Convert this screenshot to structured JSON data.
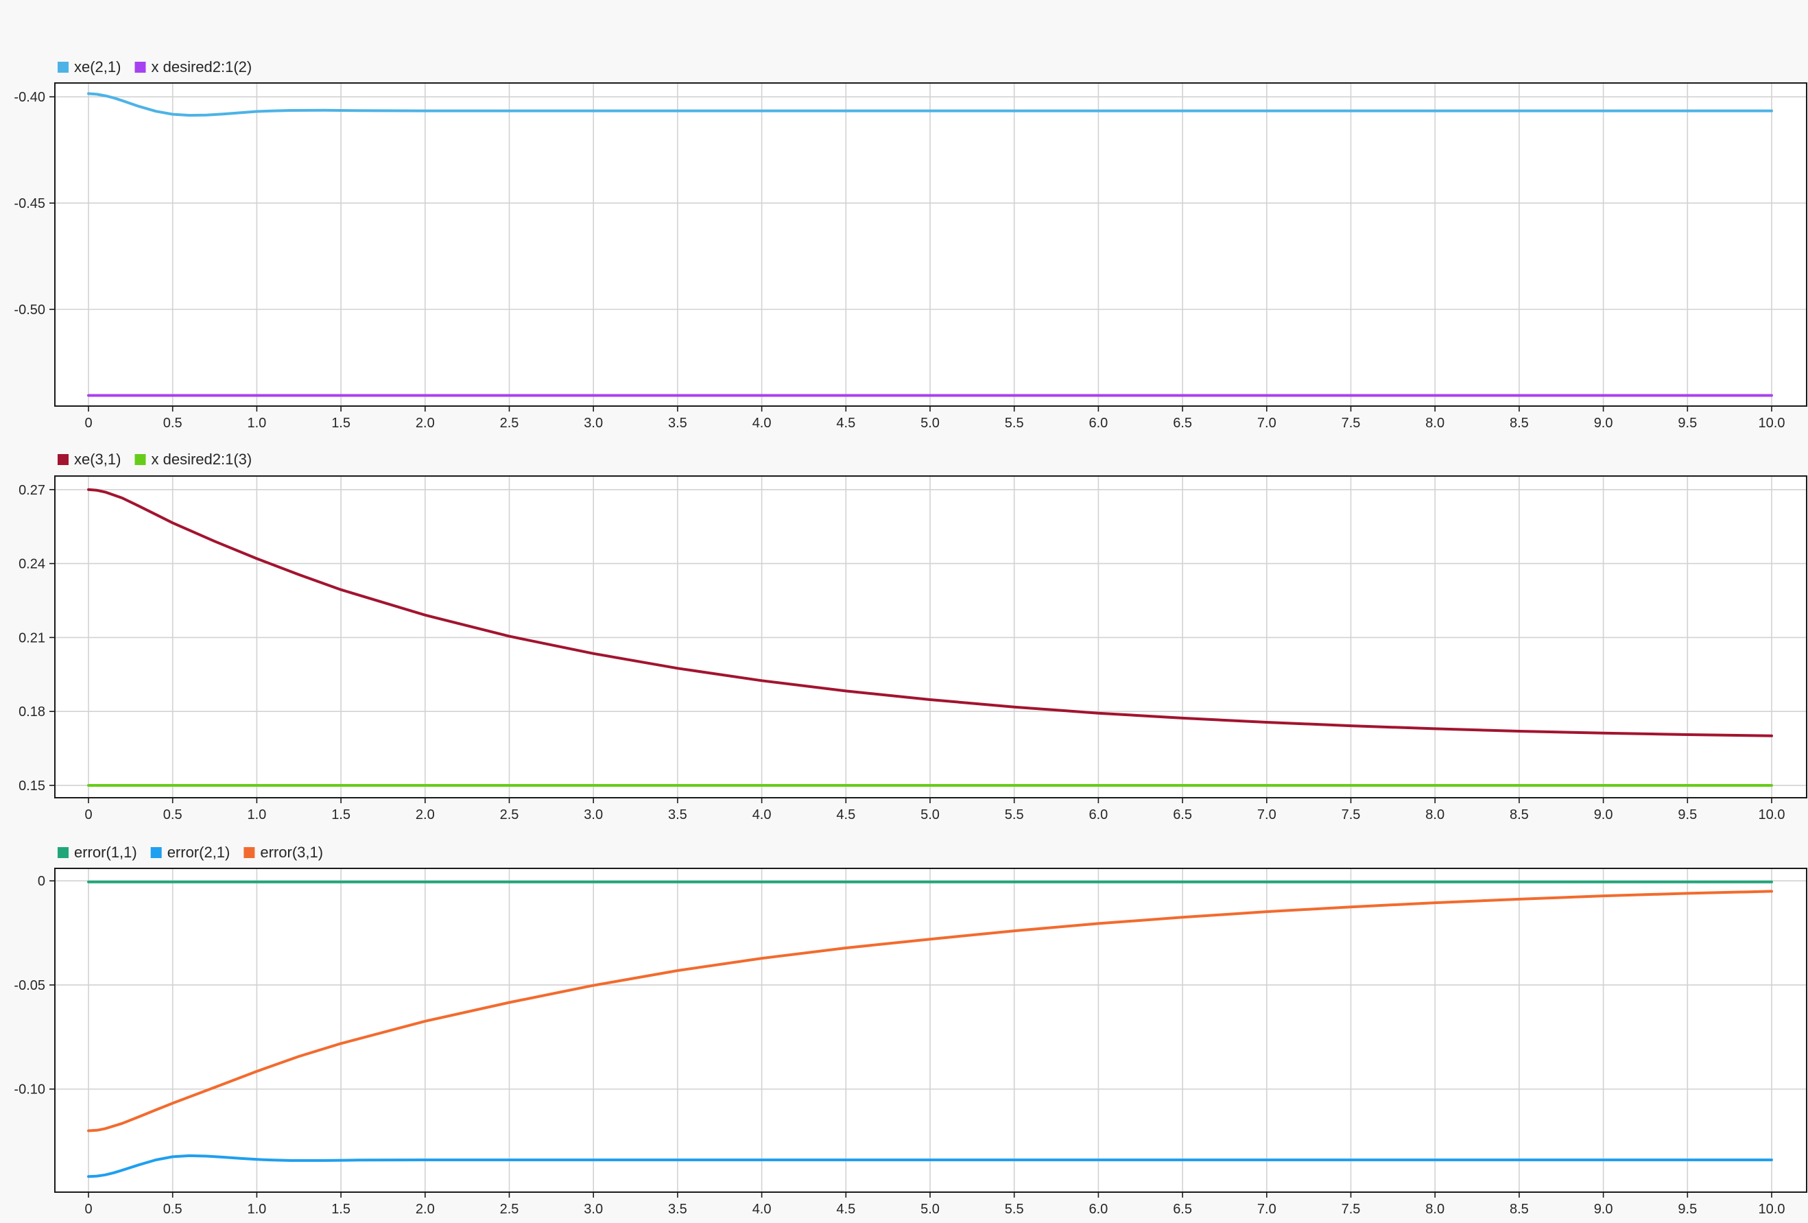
{
  "colors": {
    "background": "#f8f8f8",
    "axes_background": "#ffffff",
    "axes_border": "#1a1a1a",
    "grid": "#d2d2d2",
    "text": "#262626"
  },
  "chart_data": [
    {
      "type": "line",
      "title": "",
      "xlabel": "",
      "ylabel": "",
      "xlim": [
        0,
        10
      ],
      "ylim": [
        -0.5455,
        -0.3935
      ],
      "grid": true,
      "legend_position": "top-left",
      "x_ticks": [
        0,
        0.5,
        1.0,
        1.5,
        2.0,
        2.5,
        3.0,
        3.5,
        4.0,
        4.5,
        5.0,
        5.5,
        6.0,
        6.5,
        7.0,
        7.5,
        8.0,
        8.5,
        9.0,
        9.5,
        10.0
      ],
      "x_tick_labels": [
        "0",
        "0.5",
        "1.0",
        "1.5",
        "2.0",
        "2.5",
        "3.0",
        "3.5",
        "4.0",
        "4.5",
        "5.0",
        "5.5",
        "6.0",
        "6.5",
        "7.0",
        "7.5",
        "8.0",
        "8.5",
        "9.0",
        "9.5",
        "10.0"
      ],
      "y_ticks": [
        -0.4,
        -0.45,
        -0.5
      ],
      "y_tick_labels": [
        "-0.40",
        "-0.45",
        "-0.50"
      ],
      "series": [
        {
          "name": "xe(2,1)",
          "color": "#4db3e6",
          "x": [
            0,
            0.05,
            0.1,
            0.15,
            0.2,
            0.3,
            0.4,
            0.5,
            0.6,
            0.7,
            0.8,
            0.9,
            1.0,
            1.1,
            1.2,
            1.4,
            1.6,
            2.0,
            3.0,
            5.0,
            7.0,
            10.0
          ],
          "y": [
            -0.3985,
            -0.3988,
            -0.3995,
            -0.4005,
            -0.4018,
            -0.4045,
            -0.4068,
            -0.4082,
            -0.4087,
            -0.4086,
            -0.4081,
            -0.4075,
            -0.4069,
            -0.4066,
            -0.4064,
            -0.4063,
            -0.4065,
            -0.4066,
            -0.4066,
            -0.4066,
            -0.4066,
            -0.4066
          ]
        },
        {
          "name": "x desired2:1(2)",
          "color": "#a742f0",
          "x": [
            0,
            10
          ],
          "y": [
            -0.5405,
            -0.5405
          ]
        }
      ]
    },
    {
      "type": "line",
      "title": "",
      "xlabel": "",
      "ylabel": "",
      "xlim": [
        0,
        10
      ],
      "ylim": [
        0.145,
        0.2755
      ],
      "grid": true,
      "legend_position": "top-left",
      "x_ticks": [
        0,
        0.5,
        1.0,
        1.5,
        2.0,
        2.5,
        3.0,
        3.5,
        4.0,
        4.5,
        5.0,
        5.5,
        6.0,
        6.5,
        7.0,
        7.5,
        8.0,
        8.5,
        9.0,
        9.5,
        10.0
      ],
      "x_tick_labels": [
        "0",
        "0.5",
        "1.0",
        "1.5",
        "2.0",
        "2.5",
        "3.0",
        "3.5",
        "4.0",
        "4.5",
        "5.0",
        "5.5",
        "6.0",
        "6.5",
        "7.0",
        "7.5",
        "8.0",
        "8.5",
        "9.0",
        "9.5",
        "10.0"
      ],
      "y_ticks": [
        0.27,
        0.24,
        0.21,
        0.18,
        0.15
      ],
      "y_tick_labels": [
        "0.27",
        "0.24",
        "0.21",
        "0.18",
        "0.15"
      ],
      "series": [
        {
          "name": "xe(3,1)",
          "color": "#a2142f",
          "x": [
            0,
            0.05,
            0.1,
            0.2,
            0.3,
            0.4,
            0.5,
            0.75,
            1.0,
            1.25,
            1.5,
            2.0,
            2.5,
            3.0,
            3.5,
            4.0,
            4.5,
            5.0,
            5.5,
            6.0,
            6.5,
            7.0,
            7.5,
            8.0,
            8.5,
            9.0,
            9.5,
            10.0
          ],
          "y": [
            0.27,
            0.2697,
            0.269,
            0.2666,
            0.2633,
            0.2599,
            0.2565,
            0.249,
            0.242,
            0.2355,
            0.2294,
            0.2191,
            0.2105,
            0.2035,
            0.1975,
            0.1925,
            0.1883,
            0.1848,
            0.1818,
            0.1793,
            0.1773,
            0.1756,
            0.1742,
            0.173,
            0.172,
            0.1712,
            0.1706,
            0.1701
          ]
        },
        {
          "name": "x desired2:1(3)",
          "color": "#66cc1a",
          "x": [
            0,
            10
          ],
          "y": [
            0.15,
            0.15
          ]
        }
      ]
    },
    {
      "type": "line",
      "title": "",
      "xlabel": "",
      "ylabel": "",
      "xlim": [
        0,
        10
      ],
      "ylim": [
        -0.1495,
        0.006
      ],
      "grid": true,
      "legend_position": "top-left",
      "x_ticks": [
        0,
        0.5,
        1.0,
        1.5,
        2.0,
        2.5,
        3.0,
        3.5,
        4.0,
        4.5,
        5.0,
        5.5,
        6.0,
        6.5,
        7.0,
        7.5,
        8.0,
        8.5,
        9.0,
        9.5,
        10.0
      ],
      "x_tick_labels": [
        "0",
        "0.5",
        "1.0",
        "1.5",
        "2.0",
        "2.5",
        "3.0",
        "3.5",
        "4.0",
        "4.5",
        "5.0",
        "5.5",
        "6.0",
        "6.5",
        "7.0",
        "7.5",
        "8.0",
        "8.5",
        "9.0",
        "9.5",
        "10.0"
      ],
      "y_ticks": [
        0,
        -0.05,
        -0.1
      ],
      "y_tick_labels": [
        "0",
        "-0.05",
        "-0.10"
      ],
      "series": [
        {
          "name": "error(1,1)",
          "color": "#21a67a",
          "x": [
            0,
            10
          ],
          "y": [
            -0.0005,
            -0.0005
          ]
        },
        {
          "name": "error(2,1)",
          "color": "#1f9ff0",
          "x": [
            0,
            0.05,
            0.1,
            0.15,
            0.2,
            0.3,
            0.4,
            0.5,
            0.6,
            0.7,
            0.8,
            0.9,
            1.0,
            1.1,
            1.2,
            1.4,
            1.6,
            2.0,
            3.0,
            5.0,
            7.0,
            10.0
          ],
          "y": [
            -0.142,
            -0.1418,
            -0.1412,
            -0.1402,
            -0.139,
            -0.1364,
            -0.134,
            -0.1325,
            -0.132,
            -0.1322,
            -0.1327,
            -0.1333,
            -0.1338,
            -0.1341,
            -0.1343,
            -0.1343,
            -0.1341,
            -0.134,
            -0.134,
            -0.134,
            -0.134,
            -0.134
          ]
        },
        {
          "name": "error(3,1)",
          "color": "#f26b2e",
          "x": [
            0,
            0.05,
            0.1,
            0.2,
            0.3,
            0.4,
            0.5,
            0.75,
            1.0,
            1.25,
            1.5,
            2.0,
            2.5,
            3.0,
            3.5,
            4.0,
            4.5,
            5.0,
            5.5,
            6.0,
            6.5,
            7.0,
            7.5,
            8.0,
            8.5,
            9.0,
            9.5,
            10.0
          ],
          "y": [
            -0.12,
            -0.1198,
            -0.119,
            -0.1165,
            -0.1133,
            -0.11,
            -0.1068,
            -0.0992,
            -0.0915,
            -0.0843,
            -0.0781,
            -0.0674,
            -0.0584,
            -0.0502,
            -0.0431,
            -0.0372,
            -0.0322,
            -0.028,
            -0.024,
            -0.0205,
            -0.0175,
            -0.0148,
            -0.0125,
            -0.0105,
            -0.0088,
            -0.0072,
            -0.006,
            -0.005
          ]
        }
      ]
    }
  ]
}
